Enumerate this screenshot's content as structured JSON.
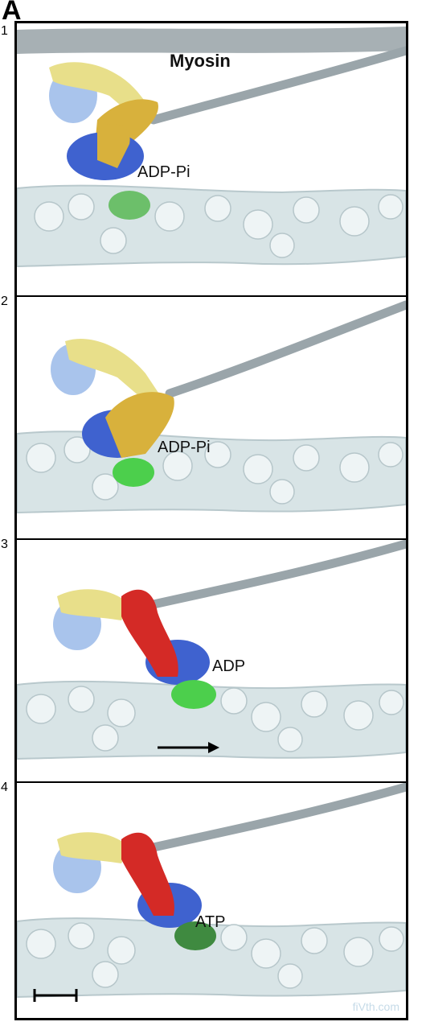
{
  "figure_letter": "A",
  "myosin_label": "Myosin",
  "panels": [
    {
      "number": "1",
      "nucleotide": "ADP-Pi"
    },
    {
      "number": "2",
      "nucleotide": "ADP-Pi"
    },
    {
      "number": "3",
      "nucleotide": "ADP"
    },
    {
      "number": "4",
      "nucleotide": "ATP"
    }
  ],
  "watermark": "fiVth.com",
  "colors": {
    "actin": "#d8e4e6",
    "light_chain": "#e8df8a",
    "light_chain_blue": "#a9c4ec",
    "lever_prepowerstroke": "#d8b13c",
    "lever_postpowerstroke": "#d42a26",
    "motor_domain": "#3f62cf",
    "actin_binding_site": "#4ccf4c",
    "tail": "#9aa5aa"
  }
}
